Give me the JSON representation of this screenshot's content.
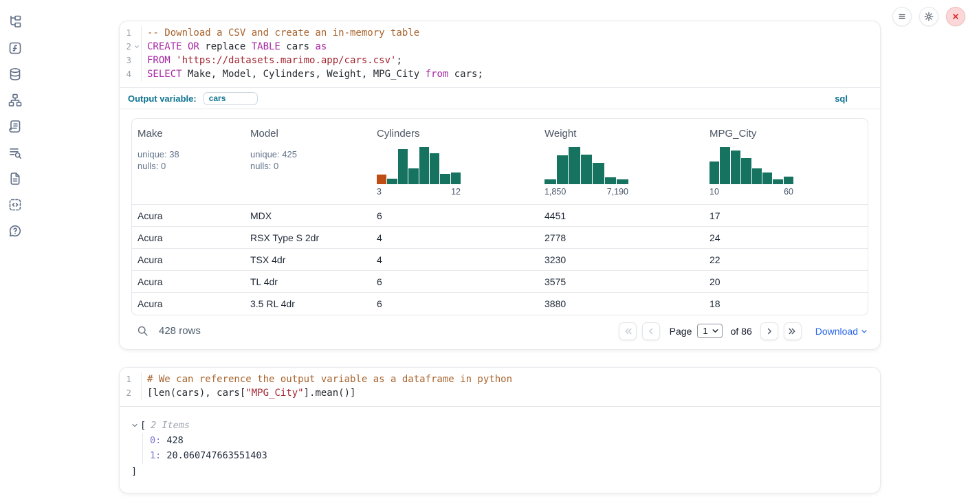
{
  "sidebar": {
    "items": [
      {
        "icon": "file-tree"
      },
      {
        "icon": "function-square"
      },
      {
        "icon": "database"
      },
      {
        "icon": "dependency-graph"
      },
      {
        "icon": "scratchpad"
      },
      {
        "icon": "logs-search"
      },
      {
        "icon": "document"
      },
      {
        "icon": "snippets"
      },
      {
        "icon": "help"
      }
    ]
  },
  "topbar": {
    "buttons": [
      {
        "icon": "menu"
      },
      {
        "icon": "gear"
      },
      {
        "icon": "close"
      }
    ]
  },
  "sql_cell": {
    "lines": [
      {
        "num": "1",
        "fold": false,
        "tokens": [
          [
            "comment",
            "-- Download a CSV and create an in-memory table"
          ]
        ]
      },
      {
        "num": "2",
        "fold": true,
        "tokens": [
          [
            "kw",
            "CREATE OR"
          ],
          [
            "plain",
            " replace "
          ],
          [
            "kw",
            "TABLE"
          ],
          [
            "plain",
            " cars "
          ],
          [
            "kw",
            "as"
          ]
        ]
      },
      {
        "num": "3",
        "fold": false,
        "tokens": [
          [
            "kw",
            "FROM"
          ],
          [
            "plain",
            " "
          ],
          [
            "str",
            "'https://datasets.marimo.app/cars.csv'"
          ],
          [
            "plain",
            ";"
          ]
        ]
      },
      {
        "num": "4",
        "fold": false,
        "tokens": [
          [
            "kw",
            "SELECT"
          ],
          [
            "plain",
            " Make, Model, Cylinders, Weight, MPG_City "
          ],
          [
            "kw",
            "from"
          ],
          [
            "plain",
            " cars;"
          ]
        ]
      }
    ],
    "output_variable_label": "Output variable:",
    "output_variable_value": "cars",
    "language_badge": "sql"
  },
  "table": {
    "columns": [
      {
        "name": "Make",
        "stats": [
          "unique: 38",
          "nulls: 0"
        ]
      },
      {
        "name": "Model",
        "stats": [
          "unique: 425",
          "nulls: 0"
        ]
      },
      {
        "name": "Cylinders",
        "histogram": {
          "min_label": "3",
          "max_label": "12",
          "highlight_index": 0,
          "bars": [
            0.26,
            0.14,
            0.94,
            0.42,
            1.0,
            0.84,
            0.27,
            0.32
          ]
        }
      },
      {
        "name": "Weight",
        "histogram": {
          "min_label": "1,850",
          "max_label": "7,190",
          "highlight_index": -1,
          "bars": [
            0.13,
            0.77,
            1.0,
            0.8,
            0.57,
            0.19,
            0.13
          ]
        }
      },
      {
        "name": "MPG_City",
        "histogram": {
          "min_label": "10",
          "max_label": "60",
          "highlight_index": -1,
          "bars": [
            0.61,
            1.0,
            0.9,
            0.71,
            0.42,
            0.31,
            0.13,
            0.21
          ]
        }
      }
    ],
    "rows": [
      [
        "Acura",
        "MDX",
        "6",
        "4451",
        "17"
      ],
      [
        "Acura",
        "RSX Type S 2dr",
        "4",
        "2778",
        "24"
      ],
      [
        "Acura",
        "TSX 4dr",
        "4",
        "3230",
        "22"
      ],
      [
        "Acura",
        "TL 4dr",
        "6",
        "3575",
        "20"
      ],
      [
        "Acura",
        "3.5 RL 4dr",
        "6",
        "3880",
        "18"
      ]
    ],
    "footer": {
      "rows_label": "428 rows",
      "page_label": "Page",
      "page_value": "1",
      "of_label": "of 86",
      "download_label": "Download"
    }
  },
  "python_cell": {
    "lines": [
      {
        "num": "1",
        "fold": false,
        "tokens": [
          [
            "comment",
            "# We can reference the output variable as a dataframe in python"
          ]
        ]
      },
      {
        "num": "2",
        "fold": false,
        "tokens": [
          [
            "plain",
            "[len(cars), cars["
          ],
          [
            "str",
            "\"MPG_City\""
          ],
          [
            "plain",
            "].mean()]"
          ]
        ]
      }
    ]
  },
  "python_output": {
    "bracket_open": "[",
    "items_label": "2 Items",
    "items": [
      {
        "key": "0:",
        "value": "428"
      },
      {
        "key": "1:",
        "value": "20.060747663551403"
      }
    ],
    "bracket_close": "]"
  },
  "colors": {
    "histogram_bar": "#16735f",
    "histogram_highlight": "#bf4d14",
    "keyword": "#a626a4",
    "string": "#a2242f",
    "comment": "#a8632c",
    "accent_teal": "#0e7490",
    "link_blue": "#2563eb",
    "close_red": "#dc2626"
  }
}
